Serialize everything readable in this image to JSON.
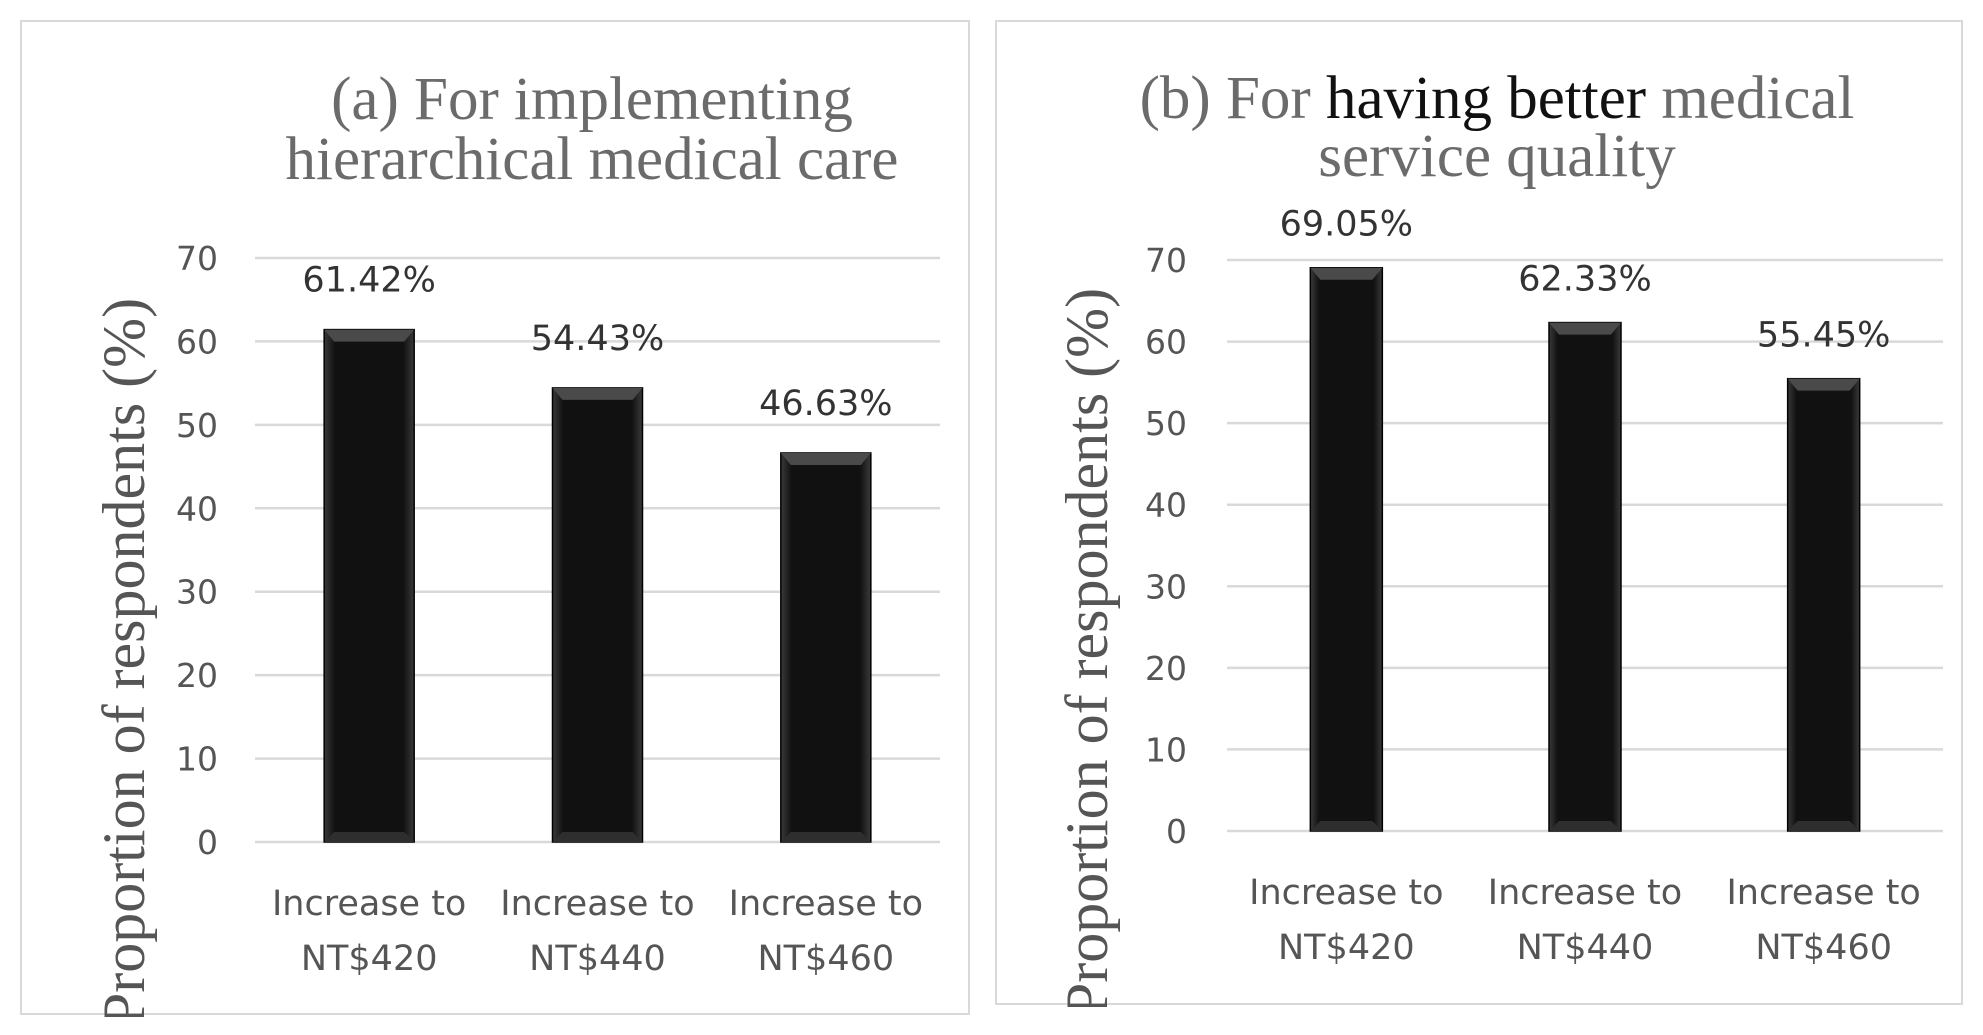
{
  "chart_data": [
    {
      "type": "bar",
      "title_lines": [
        "(a) For implementing",
        "hierarchical medical care"
      ],
      "ylabel": "Proportion of respondents (%)",
      "xlabel": "",
      "categories": [
        [
          "Increase to",
          "NT$420"
        ],
        [
          "Increase to",
          "NT$440"
        ],
        [
          "Increase to",
          "NT$460"
        ]
      ],
      "values": [
        61.42,
        54.43,
        46.63
      ],
      "data_labels": [
        "61.42%",
        "54.43%",
        "46.63%"
      ],
      "ylim": [
        0,
        70
      ],
      "yticks": [
        0,
        10,
        20,
        30,
        40,
        50,
        60,
        70
      ],
      "grid": true,
      "bar_color": "#111111",
      "grid_color": "#d9d9d9"
    },
    {
      "type": "bar",
      "title_lines": [
        "(b) For having better medical",
        "service quality"
      ],
      "title_dark_words": [
        "having",
        "better"
      ],
      "ylabel": "Proportion of respondents (%)",
      "xlabel": "",
      "categories": [
        [
          "Increase to",
          "NT$420"
        ],
        [
          "Increase to",
          "NT$440"
        ],
        [
          "Increase to",
          "NT$460"
        ]
      ],
      "values": [
        69.05,
        62.33,
        55.45
      ],
      "data_labels": [
        "69.05%",
        "62.33%",
        "55.45%"
      ],
      "ylim": [
        0,
        70
      ],
      "yticks": [
        0,
        10,
        20,
        30,
        40,
        50,
        60,
        70
      ],
      "grid": true,
      "bar_color": "#111111",
      "grid_color": "#d9d9d9"
    }
  ]
}
